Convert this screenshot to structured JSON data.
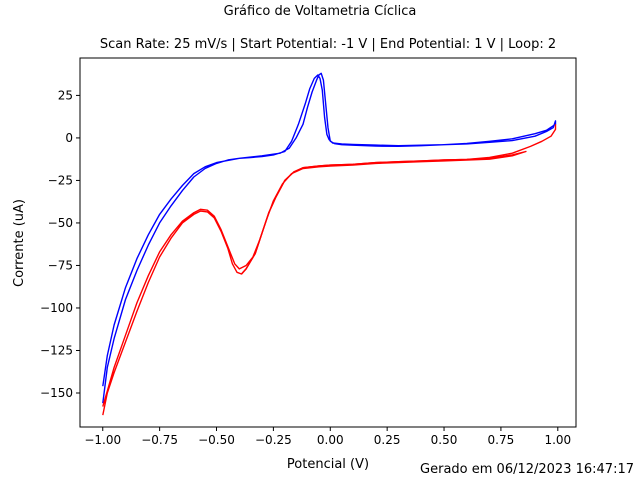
{
  "figure": {
    "suptitle": "Gráfico de Voltametria Cíclica",
    "footer": "Gerado em 06/12/2023 16:47:17"
  },
  "chart_data": {
    "type": "line",
    "title": "Scan Rate: 25 mV/s | Start Potential: -1 V | End Potential: 1 V | Loop: 2",
    "xlabel": "Potencial (V)",
    "ylabel": "Corrente (uA)",
    "xlim": [
      -1.1,
      1.08
    ],
    "ylim": [
      -170,
      47
    ],
    "xticks": [
      -1.0,
      -0.75,
      -0.5,
      -0.25,
      0.0,
      0.25,
      0.5,
      0.75,
      1.0
    ],
    "xtick_labels": [
      "−1.00",
      "−0.75",
      "−0.50",
      "−0.25",
      "0.00",
      "0.25",
      "0.50",
      "0.75",
      "1.00"
    ],
    "yticks": [
      25,
      0,
      -25,
      -50,
      -75,
      -100,
      -125,
      -150
    ],
    "ytick_labels": [
      "25",
      "0",
      "−25",
      "−50",
      "−75",
      "−100",
      "−125",
      "−150"
    ],
    "grid": false,
    "legend": null,
    "series": [
      {
        "color": "#0000ff",
        "points": [
          [
            -1.0,
            -156
          ],
          [
            -0.98,
            -135
          ],
          [
            -0.95,
            -118
          ],
          [
            -0.9,
            -95
          ],
          [
            -0.85,
            -78
          ],
          [
            -0.8,
            -63
          ],
          [
            -0.75,
            -50
          ],
          [
            -0.7,
            -40
          ],
          [
            -0.65,
            -31
          ],
          [
            -0.6,
            -23
          ],
          [
            -0.55,
            -18
          ],
          [
            -0.5,
            -15
          ],
          [
            -0.45,
            -13
          ],
          [
            -0.4,
            -12
          ],
          [
            -0.35,
            -11.5
          ],
          [
            -0.3,
            -11
          ],
          [
            -0.25,
            -10
          ],
          [
            -0.2,
            -8
          ],
          [
            -0.17,
            -2
          ],
          [
            -0.14,
            8
          ],
          [
            -0.11,
            20
          ],
          [
            -0.09,
            29
          ],
          [
            -0.07,
            35
          ],
          [
            -0.055,
            37
          ],
          [
            -0.045,
            35
          ],
          [
            -0.035,
            28
          ],
          [
            -0.025,
            12
          ],
          [
            -0.015,
            2
          ],
          [
            -0.005,
            -1
          ],
          [
            0.01,
            -3
          ],
          [
            0.05,
            -3.5
          ],
          [
            0.1,
            -3.8
          ],
          [
            0.2,
            -4.2
          ],
          [
            0.3,
            -4.6
          ],
          [
            0.4,
            -4.3
          ],
          [
            0.5,
            -4.0
          ],
          [
            0.6,
            -3.5
          ],
          [
            0.7,
            -2.6
          ],
          [
            0.8,
            -1.6
          ],
          [
            0.9,
            1
          ],
          [
            0.95,
            3.8
          ],
          [
            0.98,
            6
          ],
          [
            0.99,
            10
          ],
          [
            0.99,
            8
          ],
          [
            0.95,
            4.5
          ],
          [
            0.9,
            2.5
          ],
          [
            0.8,
            -0.5
          ],
          [
            0.7,
            -2
          ],
          [
            0.6,
            -3.2
          ],
          [
            0.5,
            -4
          ],
          [
            0.4,
            -4.6
          ],
          [
            0.3,
            -4.9
          ],
          [
            0.2,
            -4.8
          ],
          [
            0.1,
            -4.3
          ],
          [
            0.05,
            -4
          ],
          [
            0.02,
            -3.4
          ],
          [
            0.0,
            -2
          ],
          [
            -0.01,
            6
          ],
          [
            -0.02,
            20
          ],
          [
            -0.03,
            34
          ],
          [
            -0.04,
            38
          ],
          [
            -0.05,
            37
          ],
          [
            -0.06,
            34
          ],
          [
            -0.08,
            27
          ],
          [
            -0.1,
            18
          ],
          [
            -0.12,
            8
          ],
          [
            -0.15,
            0
          ],
          [
            -0.18,
            -6
          ],
          [
            -0.22,
            -9
          ],
          [
            -0.3,
            -10.5
          ],
          [
            -0.4,
            -12
          ],
          [
            -0.5,
            -14.5
          ],
          [
            -0.55,
            -17
          ],
          [
            -0.6,
            -21
          ],
          [
            -0.65,
            -28
          ],
          [
            -0.7,
            -36
          ],
          [
            -0.75,
            -45
          ],
          [
            -0.8,
            -57
          ],
          [
            -0.85,
            -71
          ],
          [
            -0.9,
            -88
          ],
          [
            -0.95,
            -110
          ],
          [
            -0.98,
            -128
          ],
          [
            -1.0,
            -146
          ]
        ]
      },
      {
        "color": "#ff0000",
        "points": [
          [
            -1.0,
            -163
          ],
          [
            -0.98,
            -150
          ],
          [
            -0.95,
            -138
          ],
          [
            -0.9,
            -120
          ],
          [
            -0.85,
            -102
          ],
          [
            -0.8,
            -85
          ],
          [
            -0.75,
            -70
          ],
          [
            -0.7,
            -59
          ],
          [
            -0.65,
            -50
          ],
          [
            -0.6,
            -45
          ],
          [
            -0.57,
            -43
          ],
          [
            -0.54,
            -43.5
          ],
          [
            -0.51,
            -47
          ],
          [
            -0.48,
            -55
          ],
          [
            -0.45,
            -65
          ],
          [
            -0.43,
            -74
          ],
          [
            -0.41,
            -79
          ],
          [
            -0.39,
            -80
          ],
          [
            -0.37,
            -77
          ],
          [
            -0.33,
            -68
          ],
          [
            -0.3,
            -56
          ],
          [
            -0.27,
            -44
          ],
          [
            -0.24,
            -35
          ],
          [
            -0.2,
            -25
          ],
          [
            -0.16,
            -20
          ],
          [
            -0.12,
            -17.5
          ],
          [
            -0.05,
            -16.5
          ],
          [
            0.0,
            -16
          ],
          [
            0.1,
            -15.5
          ],
          [
            0.2,
            -14.5
          ],
          [
            0.3,
            -14
          ],
          [
            0.4,
            -13.5
          ],
          [
            0.5,
            -13
          ],
          [
            0.6,
            -12.7
          ],
          [
            0.7,
            -12
          ],
          [
            0.8,
            -10
          ],
          [
            0.86,
            -8
          ],
          [
            0.8,
            -10.5
          ],
          [
            0.7,
            -12.5
          ],
          [
            0.6,
            -13
          ],
          [
            0.5,
            -13.5
          ],
          [
            0.4,
            -14
          ],
          [
            0.3,
            -14.5
          ],
          [
            0.2,
            -15
          ],
          [
            0.1,
            -16
          ],
          [
            0.0,
            -16.5
          ],
          [
            -0.05,
            -17
          ],
          [
            -0.12,
            -18
          ],
          [
            -0.17,
            -21
          ],
          [
            -0.21,
            -27
          ],
          [
            -0.25,
            -37
          ],
          [
            -0.28,
            -48
          ],
          [
            -0.31,
            -60
          ],
          [
            -0.34,
            -70
          ],
          [
            -0.37,
            -75
          ],
          [
            -0.4,
            -77
          ],
          [
            -0.42,
            -74
          ],
          [
            -0.45,
            -64
          ],
          [
            -0.48,
            -54
          ],
          [
            -0.51,
            -46
          ],
          [
            -0.54,
            -42.5
          ],
          [
            -0.57,
            -42
          ],
          [
            -0.6,
            -44
          ],
          [
            -0.65,
            -49
          ],
          [
            -0.7,
            -57
          ],
          [
            -0.75,
            -67
          ],
          [
            -0.8,
            -81
          ],
          [
            -0.85,
            -97
          ],
          [
            -0.9,
            -116
          ],
          [
            -0.95,
            -135
          ],
          [
            -1.0,
            -158
          ]
        ]
      },
      {
        "color": "#ff0000",
        "points": [
          [
            -0.39,
            -80
          ],
          [
            -0.37,
            -77
          ],
          [
            -0.33,
            -68
          ],
          [
            -0.3,
            -56
          ],
          [
            -0.27,
            -44
          ],
          [
            -0.24,
            -35
          ],
          [
            -0.2,
            -25
          ],
          [
            -0.16,
            -20
          ],
          [
            -0.12,
            -17.5
          ],
          [
            -0.05,
            -16.5
          ],
          [
            0.0,
            -16
          ],
          [
            0.1,
            -15.5
          ],
          [
            0.2,
            -14.5
          ],
          [
            0.3,
            -14
          ],
          [
            0.4,
            -13.5
          ],
          [
            0.5,
            -13
          ],
          [
            0.6,
            -12.7
          ],
          [
            0.7,
            -11.5
          ],
          [
            0.8,
            -9
          ],
          [
            0.88,
            -5
          ],
          [
            0.93,
            -2
          ],
          [
            0.97,
            1
          ],
          [
            0.99,
            5
          ],
          [
            0.99,
            8
          ]
        ]
      }
    ]
  }
}
